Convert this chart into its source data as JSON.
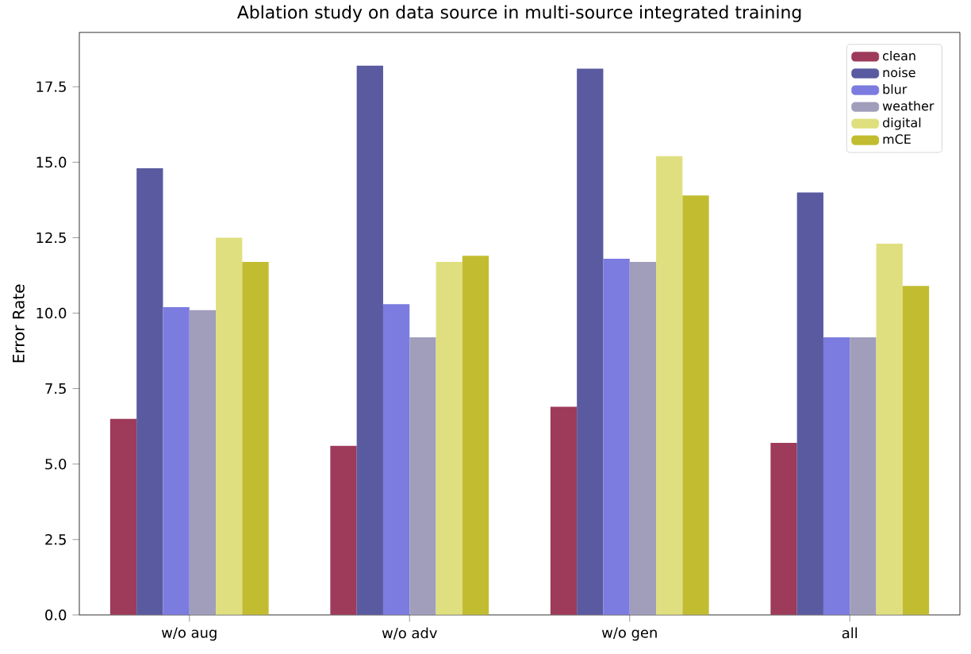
{
  "chart_data": {
    "type": "bar",
    "title": "Ablation study on data source in multi-source integrated training",
    "ylabel": "Error Rate",
    "categories": [
      "w/o aug",
      "w/o adv",
      "w/o gen",
      "all"
    ],
    "series": [
      {
        "name": "clean",
        "color": "#9e3a5a",
        "values": [
          6.5,
          5.6,
          6.9,
          5.7
        ]
      },
      {
        "name": "noise",
        "color": "#5a5aa0",
        "values": [
          14.8,
          18.2,
          18.1,
          14.0
        ]
      },
      {
        "name": "blur",
        "color": "#7b7be0",
        "values": [
          10.2,
          10.3,
          11.8,
          9.2
        ]
      },
      {
        "name": "weather",
        "color": "#a09ebb",
        "values": [
          10.1,
          9.2,
          11.7,
          9.2
        ]
      },
      {
        "name": "digital",
        "color": "#e0df80",
        "values": [
          12.5,
          11.7,
          15.2,
          12.3
        ]
      },
      {
        "name": "mCE",
        "color": "#c2bd30",
        "values": [
          11.7,
          11.9,
          13.9,
          10.9
        ]
      }
    ],
    "ylim": [
      0,
      19.3
    ],
    "yticks": [
      {
        "value": 0,
        "label": "0.0"
      },
      {
        "value": 2.5,
        "label": "2.5"
      },
      {
        "value": 5,
        "label": "5.0"
      },
      {
        "value": 7.5,
        "label": "7.5"
      },
      {
        "value": 10,
        "label": "10.0"
      },
      {
        "value": 12.5,
        "label": "12.5"
      },
      {
        "value": 15,
        "label": "15.0"
      },
      {
        "value": 17.5,
        "label": "17.5"
      }
    ],
    "legend": "top right"
  }
}
